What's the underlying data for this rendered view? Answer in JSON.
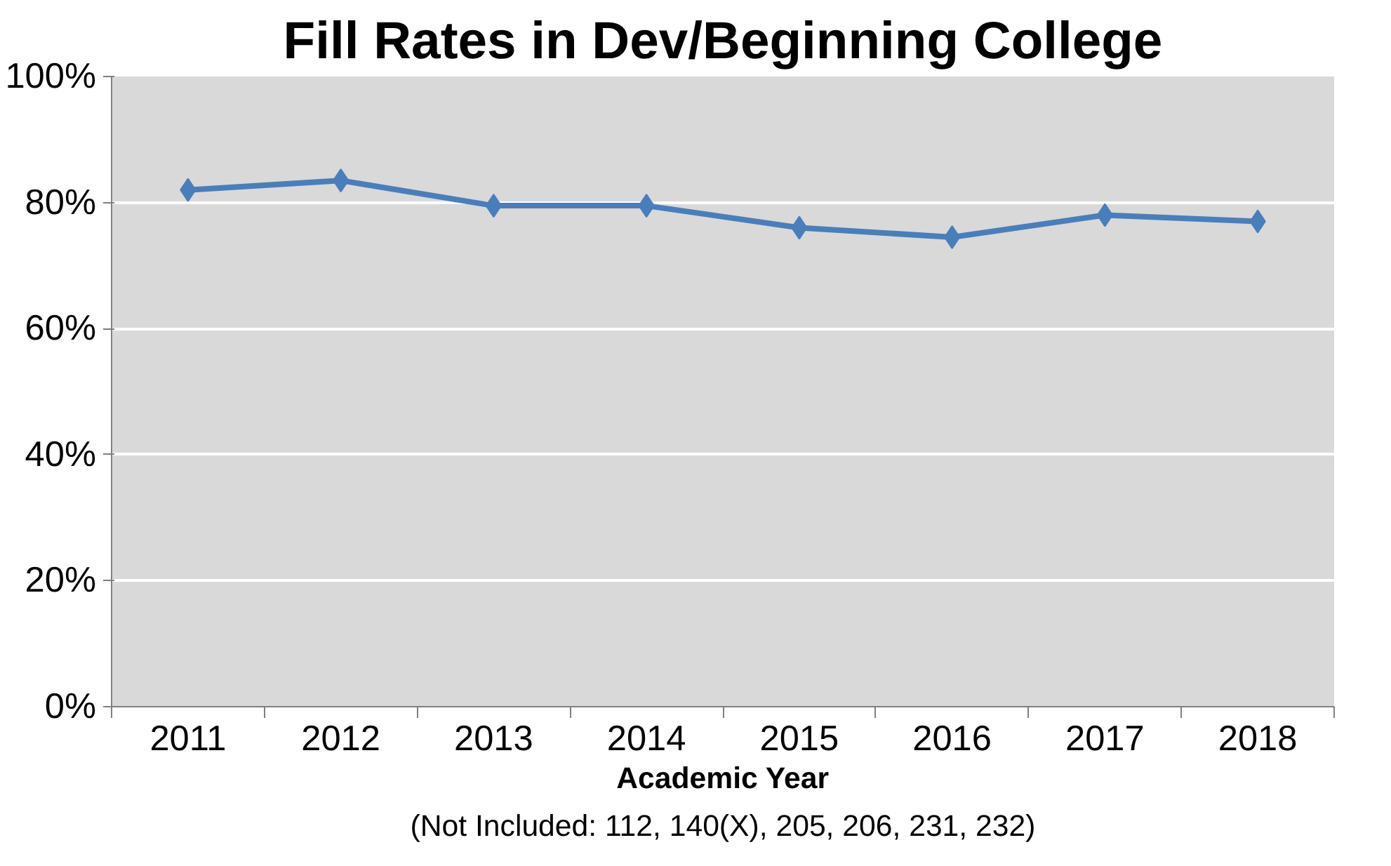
{
  "chart_data": {
    "type": "line",
    "title": "Fill Rates in Dev/Beginning College",
    "xlabel": "Academic Year",
    "annotations": [
      "(Not Included: 112, 140(X), 205, 206, 231, 232)"
    ],
    "categories": [
      "2011",
      "2012",
      "2013",
      "2014",
      "2015",
      "2016",
      "2017",
      "2018"
    ],
    "series": [
      {
        "color": "#4a7ebb",
        "values": [
          82,
          83.5,
          79.5,
          79.5,
          76,
          74.5,
          78,
          77
        ]
      }
    ],
    "ylim": [
      0,
      100
    ],
    "yticks": [
      {
        "value": 0,
        "label": "0%"
      },
      {
        "value": 20,
        "label": "20%"
      },
      {
        "value": 40,
        "label": "40%"
      },
      {
        "value": 60,
        "label": "60%"
      },
      {
        "value": 80,
        "label": "80%"
      },
      {
        "value": 100,
        "label": "100%"
      }
    ],
    "grid": "y",
    "marker": "diamond",
    "line_style": "solid"
  }
}
